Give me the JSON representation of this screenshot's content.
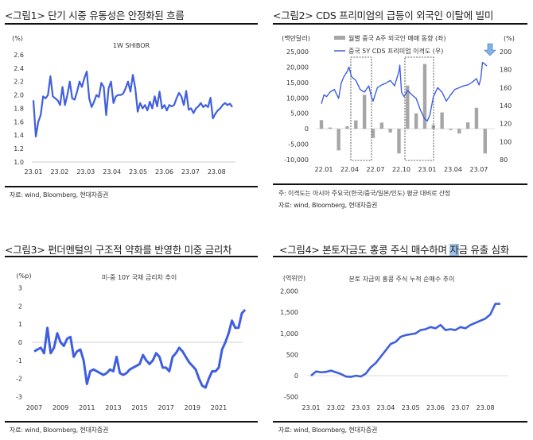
{
  "panels": [
    {
      "title": "<그림1> 단기 시중 유동성은 안정화된 흐름",
      "source": "자료: wind, Bloomberg, 현대차증권"
    },
    {
      "title": "<그림2> CDS 프리미엄의 급등이 외국인 이탈에 빌미",
      "note": "주: 이격도는 아시아 주요국(한국/중국/일본/인도) 평균 대비로 산정",
      "source": "자료: wind, Bloomberg, 현대차증권"
    },
    {
      "title": "<그림3> 펀더멘털의 구조적 약화를 반영한 미중 금리차",
      "source": "자료: wind, Bloomberg, 현대차증권"
    },
    {
      "title_pre": "<그림4> 본토자금도 홍콩 주식 매수하며 ",
      "title_hl": "자",
      "title_post": "금 유출 심화",
      "source": "자료: wind, Bloomberg, 현대차증권"
    }
  ],
  "chart_data": [
    {
      "type": "line",
      "title": "1W SHIBOR",
      "ylabel": "(%)",
      "ylim": [
        1.0,
        2.6
      ],
      "yticks": [
        "1.0",
        "1.2",
        "1.4",
        "1.6",
        "1.8",
        "2.0",
        "2.2",
        "2.4",
        "2.6"
      ],
      "xticks": [
        "23.01",
        "23.02",
        "23.03",
        "23.04",
        "23.05",
        "23.06",
        "23.07",
        "23.08"
      ],
      "x_range_months": [
        0,
        7.6
      ],
      "values": [
        1.92,
        1.38,
        1.6,
        1.7,
        1.98,
        1.95,
        2.0,
        2.28,
        1.98,
        1.95,
        1.92,
        1.85,
        2.12,
        1.85,
        2.0,
        2.2,
        1.95,
        1.93,
        2.05,
        2.2,
        2.12,
        2.25,
        2.35,
        1.95,
        1.82,
        1.9,
        2.0,
        1.97,
        2.18,
        2.12,
        1.7,
        2.1,
        2.2,
        1.88,
        1.98,
        2.0,
        2.0,
        2.02,
        2.1,
        2.2,
        2.05,
        2.3,
        2.1,
        1.75,
        1.88,
        1.8,
        1.85,
        1.77,
        1.9,
        1.8,
        1.98,
        1.83,
        2.05,
        1.8,
        1.85,
        1.77,
        1.85,
        1.83,
        1.85,
        1.95,
        2.03,
        1.98,
        1.85,
        2.06,
        1.78,
        1.8,
        1.73,
        1.8,
        1.83,
        1.88,
        1.82,
        1.85,
        1.82,
        1.96,
        1.65,
        1.72,
        1.77,
        1.8,
        1.85,
        1.88,
        1.85,
        1.87,
        1.82
      ]
    },
    {
      "type": "bar+line",
      "left_unit": "(백만달러)",
      "right_unit": "(%)",
      "left_ylim": [
        -10000,
        25000
      ],
      "right_ylim": [
        80,
        200
      ],
      "left_ticks": [
        "25,000",
        "20,000",
        "15,000",
        "10,000",
        "5,000",
        "0",
        "-5,000",
        "-10,000"
      ],
      "right_ticks": [
        "200",
        "180",
        "160",
        "140",
        "120",
        "100",
        "80"
      ],
      "xticks": [
        "22.01",
        "22.04",
        "22.07",
        "22.10",
        "23.01",
        "23.04",
        "23.07"
      ],
      "series": [
        {
          "name": "월별 중국 A주 외국인 매매 동향 (좌)",
          "type": "bar",
          "color": "#a6a6a6",
          "categories": [
            "22.01",
            "22.02",
            "22.03",
            "22.04",
            "22.05",
            "22.06",
            "22.07",
            "22.08",
            "22.09",
            "22.10",
            "22.11",
            "22.12",
            "23.01",
            "23.02",
            "23.03",
            "23.04",
            "23.05",
            "23.06",
            "23.07",
            "23.08"
          ],
          "values": [
            2800,
            400,
            -7000,
            800,
            2700,
            11000,
            -3000,
            2000,
            -1200,
            -8000,
            14000,
            5000,
            21000,
            1200,
            5300,
            -400,
            -1500,
            2100,
            6800,
            -8000
          ]
        },
        {
          "name": "중국 5Y CDS 프리미엄 이격도 (우)",
          "type": "line",
          "color": "#3f5fe0",
          "x_months": [
            0,
            0.3,
            0.6,
            1,
            1.5,
            2,
            2.3,
            2.6,
            3,
            3.2,
            3.5,
            4,
            4.5,
            5,
            5.5,
            5.8,
            6,
            6.5,
            7,
            7.5,
            8,
            8.5,
            9,
            9.1,
            9.3,
            9.6,
            10,
            10.5,
            11,
            11.5,
            12,
            12.3,
            12.6,
            13,
            13.5,
            14,
            14.5,
            15,
            15.5,
            16,
            16.5,
            17,
            17.5,
            18,
            18.3,
            18.5,
            18.7,
            19,
            19.2
          ],
          "values": [
            142,
            152,
            150,
            155,
            158,
            148,
            165,
            172,
            178,
            183,
            172,
            168,
            158,
            155,
            162,
            150,
            145,
            160,
            163,
            165,
            168,
            162,
            178,
            185,
            155,
            150,
            157,
            152,
            148,
            135,
            125,
            123,
            130,
            150,
            160,
            155,
            145,
            152,
            158,
            160,
            162,
            163,
            166,
            170,
            163,
            170,
            188,
            186,
            184
          ]
        }
      ],
      "highlight_periods": [
        [
          "22.05",
          "22.07"
        ],
        [
          "22.11",
          "23.01"
        ]
      ]
    },
    {
      "type": "line",
      "title": "미-중 10Y 국채 금리차 추이",
      "ylabel": "(%p)",
      "ylim": [
        -3,
        3
      ],
      "yticks": [
        "3",
        "2",
        "1",
        "0",
        "-1",
        "-2",
        "-3"
      ],
      "xticks": [
        "2007",
        "2009",
        "2011",
        "2013",
        "2015",
        "2017",
        "2019",
        "2021"
      ],
      "x_start_year": 2007,
      "x_step_years": 0.25,
      "values": [
        -0.5,
        -0.4,
        -0.3,
        -0.6,
        0.8,
        -0.6,
        -0.3,
        0.5,
        0,
        -0.2,
        0.2,
        0.3,
        -0.8,
        -0.5,
        -0.4,
        -1.0,
        -2.3,
        -1.6,
        -1.5,
        -1.6,
        -1.7,
        -1.8,
        -1.7,
        -1.5,
        -1.6,
        -0.8,
        -1.7,
        -1.8,
        -1.7,
        -1.5,
        -1.4,
        -1.3,
        -1.2,
        -0.7,
        -1.0,
        -1.2,
        -1.0,
        -0.6,
        -0.8,
        -1.4,
        -1.4,
        -1.6,
        -0.8,
        -0.6,
        -0.3,
        -0.5,
        -0.8,
        -1.1,
        -1.3,
        -1.5,
        -2.0,
        -2.4,
        -2.5,
        -2.0,
        -1.6,
        -1.6,
        -1.4,
        -0.4,
        0.0,
        0.5,
        1.2,
        0.8,
        0.8,
        1.6,
        1.8
      ]
    },
    {
      "type": "line",
      "title": "본토 자금의 홍콩 주식 누적 순매수 추이",
      "ylabel": "(억위안)",
      "ylim": [
        -500,
        2000
      ],
      "yticks": [
        "2,000",
        "1,500",
        "1,000",
        "500",
        "0",
        "-500"
      ],
      "xticks": [
        "23.01",
        "23.02",
        "23.03",
        "23.04",
        "23.05",
        "23.06",
        "23.07",
        "23.08"
      ],
      "x_range_months": [
        0,
        7.6
      ],
      "values": [
        0,
        100,
        80,
        90,
        120,
        80,
        40,
        -20,
        -30,
        0,
        -20,
        50,
        200,
        300,
        450,
        600,
        750,
        800,
        920,
        960,
        980,
        1000,
        1080,
        1100,
        1150,
        1120,
        1200,
        1080,
        1100,
        1080,
        1150,
        1120,
        1200,
        1250,
        1300,
        1350,
        1450,
        1700,
        1700
      ]
    }
  ],
  "colors": {
    "line": "#3f5fe0",
    "bar": "#a6a6a6",
    "arrow": "#7fb4e6"
  }
}
